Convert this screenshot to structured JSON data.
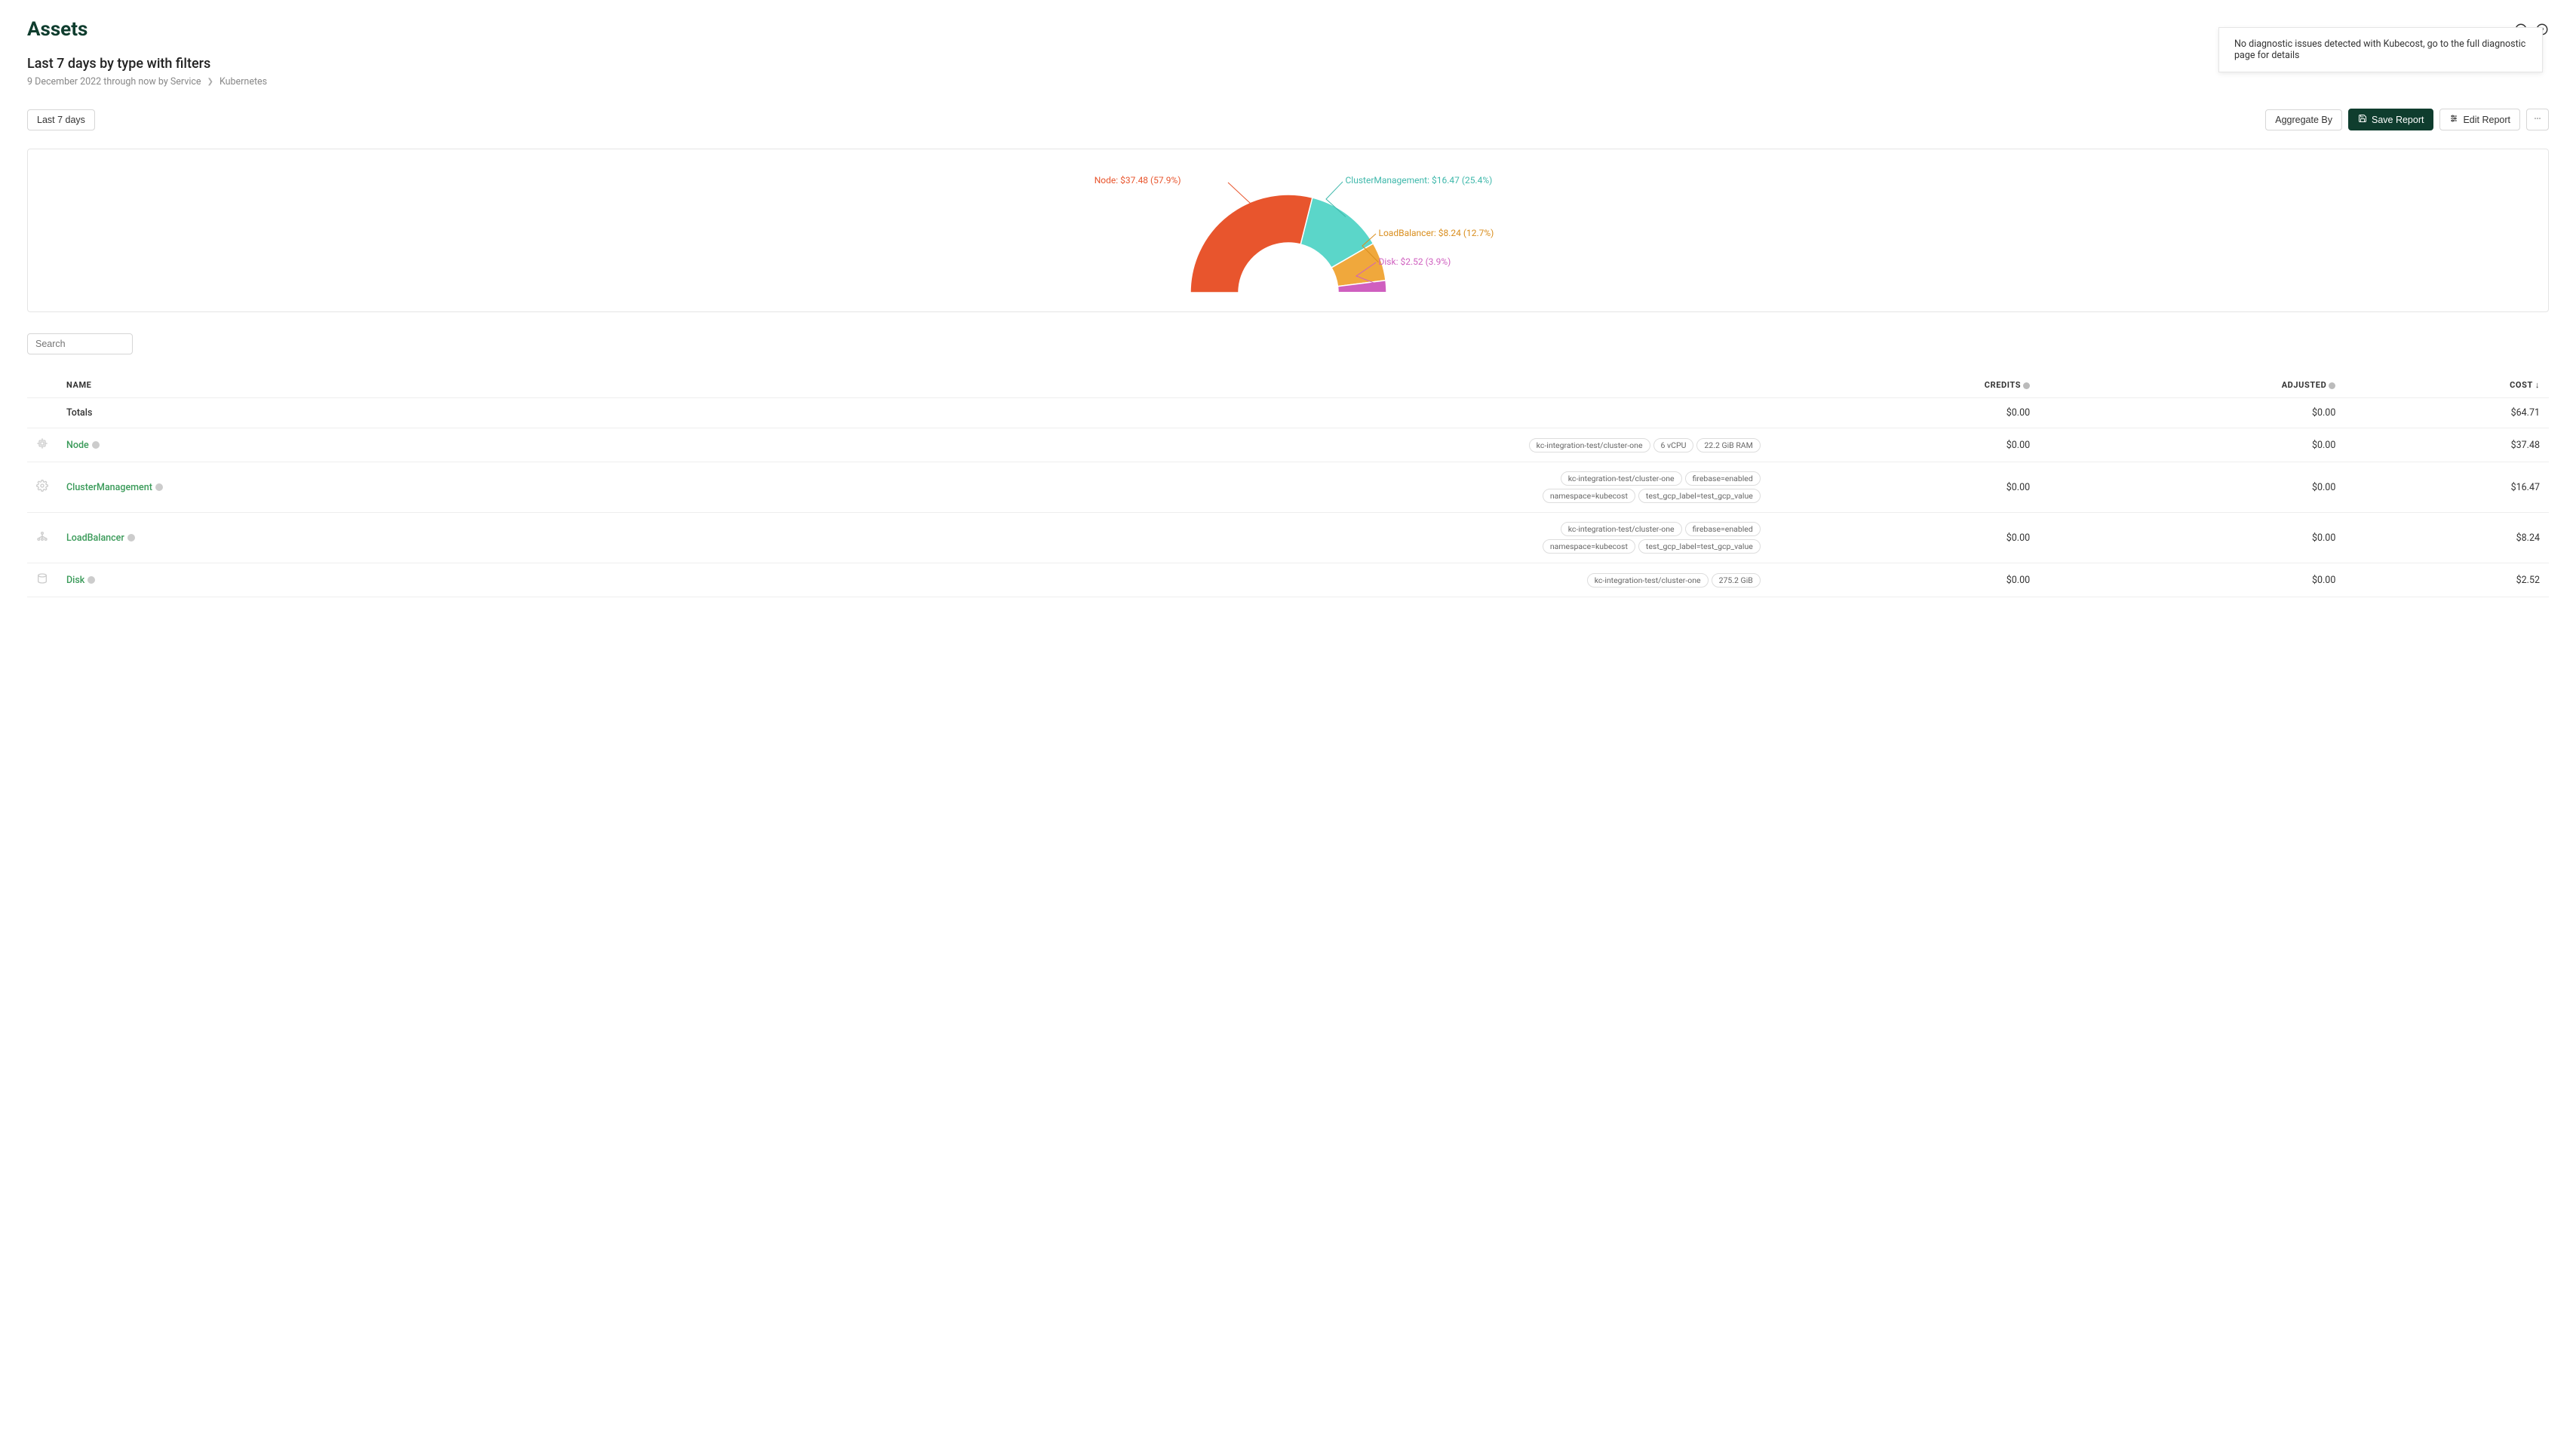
{
  "page": {
    "title": "Assets",
    "subtitle": "Last 7 days by type with filters",
    "breadcrumb": {
      "date_range": "9 December 2022 through now by Service",
      "current": "Kubernetes"
    }
  },
  "notification": "No diagnostic issues detected with Kubecost, go to the full diagnostic page for details",
  "toolbar": {
    "date_filter": "Last 7 days",
    "aggregate": "Aggregate By",
    "save": "Save Report",
    "edit": "Edit Report"
  },
  "chart": {
    "type": "half-donut",
    "background_color": "#ffffff",
    "slices": [
      {
        "label": "Node",
        "value": "$37.48",
        "pct": 57.9,
        "color": "#e8552d",
        "label_color": "#e8552d"
      },
      {
        "label": "ClusterManagement",
        "value": "$16.47",
        "pct": 25.4,
        "color": "#5bd6c9",
        "label_color": "#3fb8ab"
      },
      {
        "label": "LoadBalancer",
        "value": "$8.24",
        "pct": 12.7,
        "color": "#f0a83c",
        "label_color": "#d98e1e"
      },
      {
        "label": "Disk",
        "value": "$2.52",
        "pct": 3.9,
        "color": "#cf5fbf",
        "label_color": "#cf5fbf"
      }
    ],
    "label_fontsize": 12
  },
  "search": {
    "placeholder": "Search"
  },
  "table": {
    "columns": {
      "name": "NAME",
      "credits": "CREDITS",
      "adjusted": "ADJUSTED",
      "cost": "COST"
    },
    "totals": {
      "name": "Totals",
      "credits": "$0.00",
      "adjusted": "$0.00",
      "cost": "$64.71"
    },
    "rows": [
      {
        "icon": "cpu",
        "name": "Node",
        "tags": [
          "kc-integration-test/cluster-one",
          "6 vCPU",
          "22.2 GiB RAM"
        ],
        "credits": "$0.00",
        "adjusted": "$0.00",
        "cost": "$37.48"
      },
      {
        "icon": "gear",
        "name": "ClusterManagement",
        "tags": [
          "kc-integration-test/cluster-one",
          "firebase=enabled",
          "namespace=kubecost",
          "test_gcp_label=test_gcp_value"
        ],
        "credits": "$0.00",
        "adjusted": "$0.00",
        "cost": "$16.47"
      },
      {
        "icon": "loadbalancer",
        "name": "LoadBalancer",
        "tags": [
          "kc-integration-test/cluster-one",
          "firebase=enabled",
          "namespace=kubecost",
          "test_gcp_label=test_gcp_value"
        ],
        "credits": "$0.00",
        "adjusted": "$0.00",
        "cost": "$8.24"
      },
      {
        "icon": "disk",
        "name": "Disk",
        "tags": [
          "kc-integration-test/cluster-one",
          "275.2 GiB"
        ],
        "credits": "$0.00",
        "adjusted": "$0.00",
        "cost": "$2.52"
      }
    ]
  },
  "colors": {
    "accent_green": "#3b9b5a",
    "dark_green": "#0f3d2e",
    "border": "#e5e5e5",
    "text_muted": "#888888"
  }
}
